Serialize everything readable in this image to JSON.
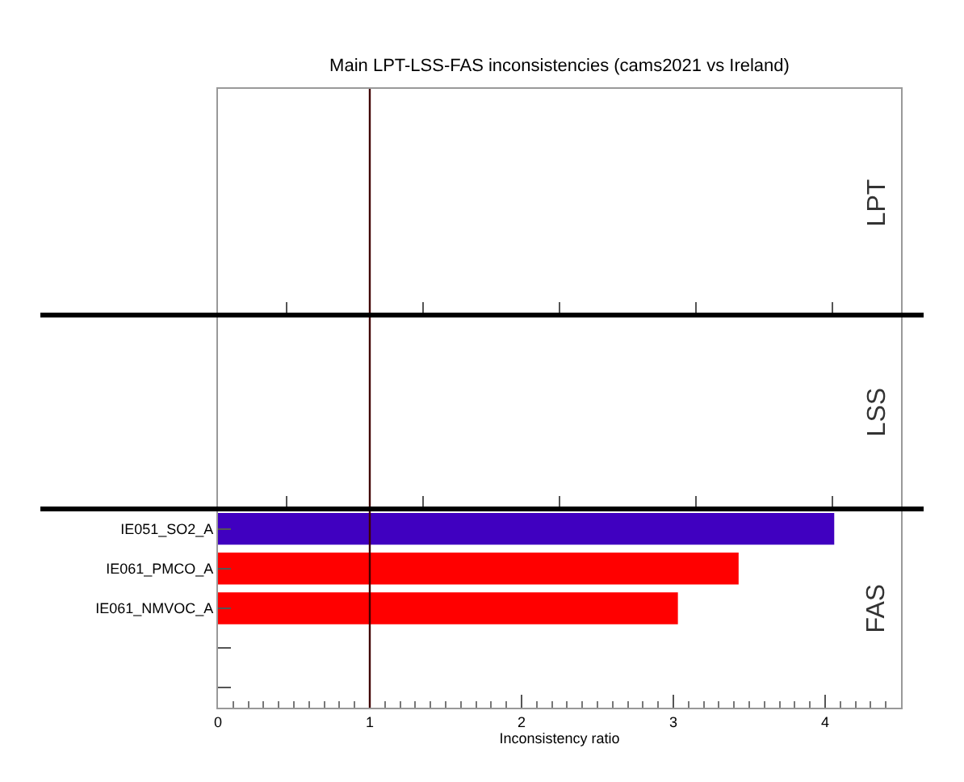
{
  "chart_data": [
    {
      "type": "other",
      "title": "Main LPT-LSS-FAS inconsistencies (cams2021 vs Ireland)",
      "categories": [
        null,
        null,
        null,
        null,
        null
      ],
      "annotations": [
        "LPT"
      ]
    },
    {
      "type": "other",
      "categories": [
        null,
        null,
        null,
        null,
        null
      ],
      "annotations": [
        "LSS"
      ]
    },
    {
      "type": "bar",
      "orientation": "horizontal",
      "categories": [
        "IE051_SO2_A",
        "IE061_PMCO_A",
        "IE061_NMVOC_A",
        null,
        null
      ],
      "values": [
        4.06,
        3.43,
        3.03,
        null,
        null
      ],
      "colors": [
        "#4000c0",
        "#ff0000",
        "#ff0000",
        "#ff0000",
        "#ff0000"
      ],
      "xlim": [
        0,
        4.5
      ],
      "xticks": [
        0,
        1,
        2,
        3,
        4
      ],
      "xlabel": "Inconsistency ratio",
      "annotations": [
        "FAS"
      ],
      "ref_lines": [
        {
          "axis": "x",
          "value": 1,
          "color": "#400000"
        }
      ]
    }
  ]
}
